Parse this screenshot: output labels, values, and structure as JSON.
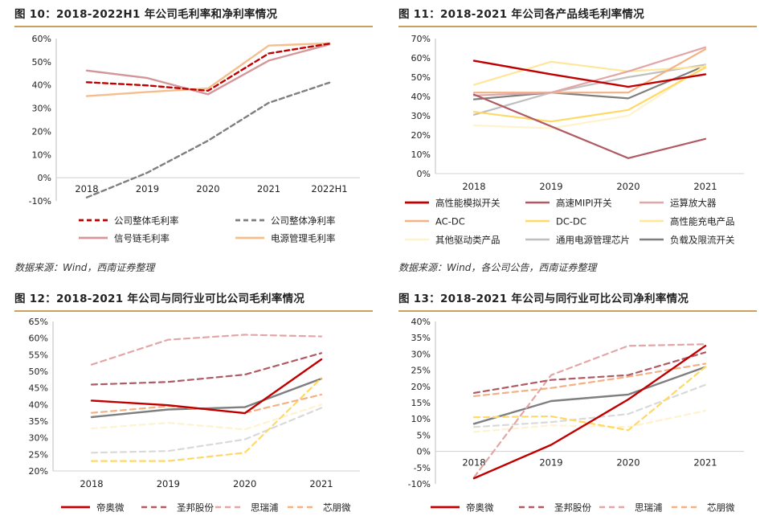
{
  "chart_data": [
    {
      "id": "fig10",
      "type": "line",
      "title": "图 10：2018-2022H1 年公司毛利率和净利率情况",
      "source": "数据来源：Wind，西南证券整理",
      "categories": [
        "2018",
        "2019",
        "2020",
        "2021",
        "2022H1"
      ],
      "ylim": [
        -10,
        60
      ],
      "yticks": [
        -10,
        0,
        10,
        20,
        30,
        40,
        50,
        60
      ],
      "ytick_labels": [
        "-10%",
        "0%",
        "10%",
        "20%",
        "30%",
        "40%",
        "50%",
        "60%"
      ],
      "series": [
        {
          "name": "公司整体毛利率",
          "values": [
            41.2,
            39.8,
            37.5,
            53.6,
            57.8
          ],
          "color": "#c00000",
          "dash": "6,4",
          "width": 2.4
        },
        {
          "name": "公司整体净利率",
          "values": [
            -8.5,
            2.2,
            16.0,
            32.3,
            41.0
          ],
          "color": "#7f7f7f",
          "dash": "6,4",
          "width": 2.4
        },
        {
          "name": "信号链毛利率",
          "values": [
            46.2,
            43.0,
            36.0,
            50.5,
            57.5
          ],
          "color": "#d4969a",
          "dash": "",
          "width": 2.4
        },
        {
          "name": "电源管理毛利率",
          "values": [
            35.2,
            37.0,
            38.5,
            57.0,
            58.0
          ],
          "color": "#f5be8c",
          "dash": "",
          "width": 2.4
        }
      ]
    },
    {
      "id": "fig11",
      "type": "line",
      "title": "图 11：2018-2021 年公司各产品线毛利率情况",
      "source": "数据来源：Wind，各公司公告，西南证券整理",
      "categories": [
        "2018",
        "2019",
        "2020",
        "2021"
      ],
      "ylim": [
        0,
        70
      ],
      "yticks": [
        0,
        10,
        20,
        30,
        40,
        50,
        60,
        70
      ],
      "ytick_labels": [
        "0%",
        "10%",
        "20%",
        "30%",
        "40%",
        "50%",
        "60%",
        "70%"
      ],
      "series": [
        {
          "name": "高性能模拟开关",
          "values": [
            58.5,
            51.5,
            45.0,
            51.5
          ],
          "color": "#c00000",
          "dash": "",
          "width": 2.4
        },
        {
          "name": "高速MIPI开关",
          "values": [
            41.0,
            24.5,
            8.0,
            18.0
          ],
          "color": "#b05a64",
          "dash": "",
          "width": 2.2
        },
        {
          "name": "运算放大器",
          "values": [
            40.5,
            42.0,
            53.0,
            65.5
          ],
          "color": "#e3a6a6",
          "dash": "",
          "width": 2.2
        },
        {
          "name": "AC-DC",
          "values": [
            42.0,
            42.0,
            42.0,
            64.5
          ],
          "color": "#f4b183",
          "dash": "",
          "width": 2.2
        },
        {
          "name": "DC-DC",
          "values": [
            32.0,
            27.0,
            33.0,
            55.0
          ],
          "color": "#ffd966",
          "dash": "",
          "width": 2.2
        },
        {
          "name": "高性能充电产品",
          "values": [
            46.0,
            58.0,
            53.0,
            55.5
          ],
          "color": "#ffe699",
          "dash": "",
          "width": 2.2
        },
        {
          "name": "其他驱动类产品",
          "values": [
            25.0,
            23.5,
            30.0,
            56.0
          ],
          "color": "#fff2cc",
          "dash": "",
          "width": 2.2
        },
        {
          "name": "通用电源管理芯片",
          "values": [
            30.5,
            42.0,
            50.0,
            56.5
          ],
          "color": "#bfbfbf",
          "dash": "",
          "width": 2.2
        },
        {
          "name": "负载及限流开关",
          "values": [
            38.5,
            42.0,
            39.0,
            56.0
          ],
          "color": "#7f7f7f",
          "dash": "",
          "width": 2.2
        }
      ]
    },
    {
      "id": "fig12",
      "type": "line",
      "title": "图 12：2018-2021 年公司与同行业可比公司毛利率情况",
      "categories": [
        "2018",
        "2019",
        "2020",
        "2021"
      ],
      "ylim": [
        20,
        65
      ],
      "yticks": [
        20,
        25,
        30,
        35,
        40,
        45,
        50,
        55,
        60,
        65
      ],
      "ytick_labels": [
        "20%",
        "25%",
        "30%",
        "35%",
        "40%",
        "45%",
        "50%",
        "55%",
        "60%",
        "65%"
      ],
      "series": [
        {
          "name": "帝奥微",
          "values": [
            41.2,
            39.8,
            37.4,
            53.6
          ],
          "color": "#c00000",
          "dash": "",
          "width": 2.4,
          "legend": true
        },
        {
          "name": "圣邦股份",
          "values": [
            46.0,
            46.8,
            49.0,
            55.5
          ],
          "color": "#b05a64",
          "dash": "7,5",
          "width": 2.2,
          "legend": true
        },
        {
          "name": "思瑞浦",
          "values": [
            52.0,
            59.5,
            61.0,
            60.5
          ],
          "color": "#e3a6a6",
          "dash": "7,5",
          "width": 2.2,
          "legend": true
        },
        {
          "name": "芯朋微",
          "values": [
            37.5,
            39.5,
            37.5,
            43.0
          ],
          "color": "#f4b183",
          "dash": "7,5",
          "width": 2.2,
          "legend": true
        },
        {
          "name": "",
          "values": [
            23.0,
            23.0,
            25.5,
            48.0
          ],
          "color": "#ffd966",
          "dash": "7,5",
          "width": 2.2,
          "legend": false
        },
        {
          "name": "",
          "values": [
            32.8,
            34.5,
            32.5,
            40.0
          ],
          "color": "#fff2cc",
          "dash": "7,5",
          "width": 2.2,
          "legend": false
        },
        {
          "name": "",
          "values": [
            25.5,
            26.0,
            29.5,
            39.0
          ],
          "color": "#d9d9d9",
          "dash": "7,5",
          "width": 2.2,
          "legend": false
        },
        {
          "name": "",
          "values": [
            36.2,
            38.5,
            39.2,
            47.8
          ],
          "color": "#7f7f7f",
          "dash": "",
          "width": 2.4,
          "legend": false
        }
      ]
    },
    {
      "id": "fig13",
      "type": "line",
      "title": "图 13：2018-2021 年公司与同行业可比公司净利率情况",
      "categories": [
        "2018",
        "2019",
        "2020",
        "2021"
      ],
      "ylim": [
        -10,
        40
      ],
      "yticks": [
        -10,
        -5,
        0,
        5,
        10,
        15,
        20,
        25,
        30,
        35,
        40
      ],
      "ytick_labels": [
        "-10%",
        "-5%",
        "0%",
        "5%",
        "10%",
        "15%",
        "20%",
        "25%",
        "30%",
        "35%",
        "40%"
      ],
      "series": [
        {
          "name": "帝奥微",
          "values": [
            -8.3,
            2.0,
            16.0,
            32.5
          ],
          "color": "#c00000",
          "dash": "",
          "width": 2.4,
          "legend": true
        },
        {
          "name": "圣邦股份",
          "values": [
            18.0,
            22.0,
            23.5,
            30.5
          ],
          "color": "#b05a64",
          "dash": "7,5",
          "width": 2.2,
          "legend": true
        },
        {
          "name": "思瑞浦",
          "values": [
            -8.0,
            23.5,
            32.5,
            33.0
          ],
          "color": "#e3a6a6",
          "dash": "7,5",
          "width": 2.2,
          "legend": true
        },
        {
          "name": "芯朋微",
          "values": [
            17.0,
            19.5,
            23.0,
            27.0
          ],
          "color": "#f4b183",
          "dash": "7,5",
          "width": 2.2,
          "legend": true
        },
        {
          "name": "",
          "values": [
            10.5,
            10.8,
            6.5,
            26.0
          ],
          "color": "#ffd966",
          "dash": "7,5",
          "width": 2.2,
          "legend": false
        },
        {
          "name": "",
          "values": [
            6.0,
            8.0,
            7.5,
            12.5
          ],
          "color": "#fff2cc",
          "dash": "7,5",
          "width": 2.2,
          "legend": false
        },
        {
          "name": "",
          "values": [
            7.5,
            9.0,
            11.5,
            20.5
          ],
          "color": "#d9d9d9",
          "dash": "7,5",
          "width": 2.2,
          "legend": false
        },
        {
          "name": "",
          "values": [
            8.5,
            15.5,
            17.5,
            26.0
          ],
          "color": "#7f7f7f",
          "dash": "",
          "width": 2.4,
          "legend": false
        }
      ]
    }
  ]
}
